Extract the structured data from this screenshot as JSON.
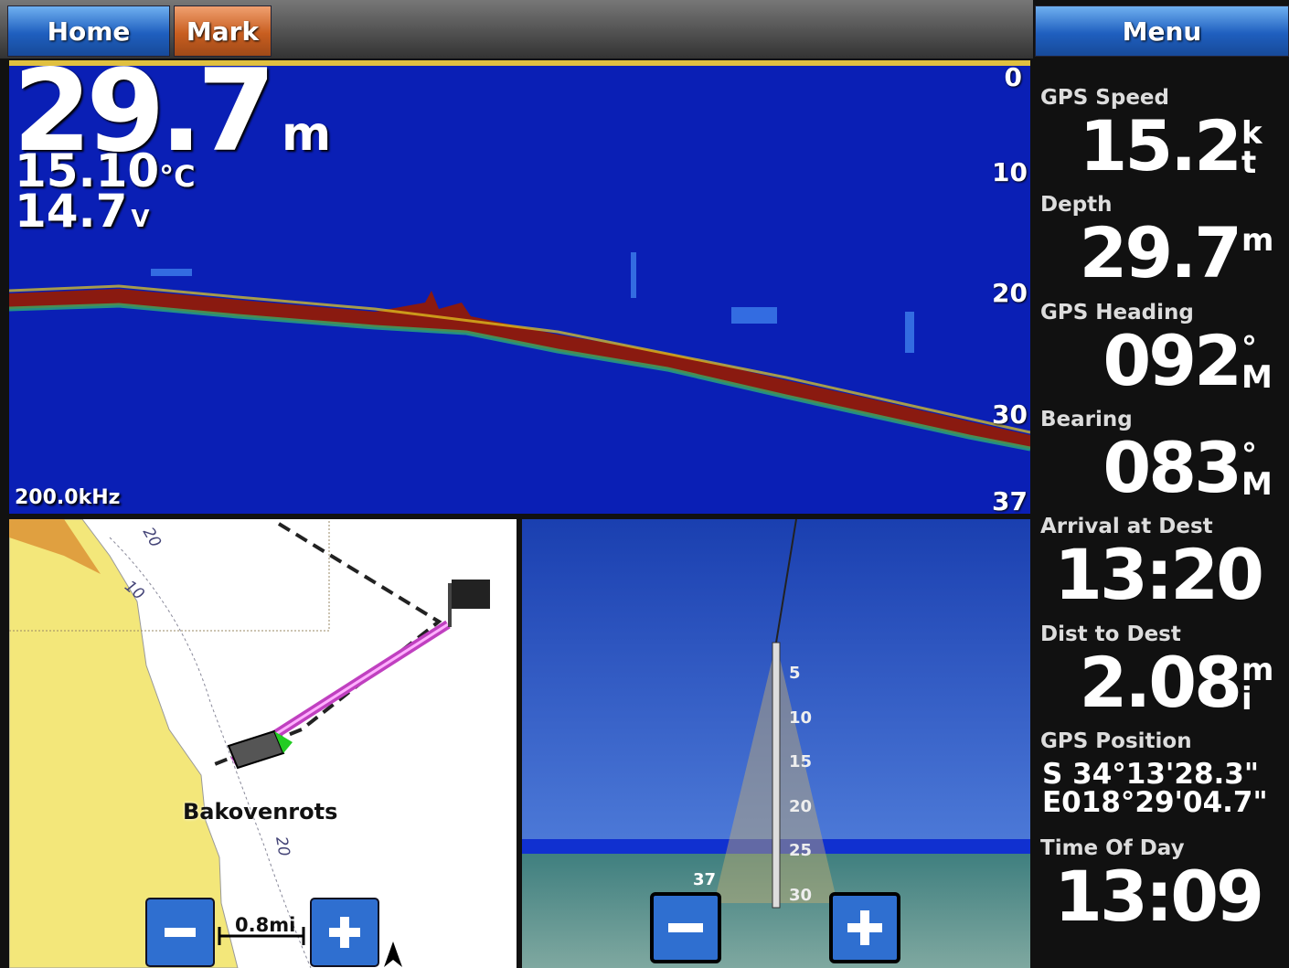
{
  "top_bar": {
    "home": "Home",
    "mark": "Mark",
    "menu": "Menu"
  },
  "sonar": {
    "depth": "29.7",
    "depth_unit": "m",
    "temperature": "15.10",
    "temperature_unit": "°C",
    "voltage": "14.7",
    "voltage_unit": "V",
    "frequency": "200.0kHz",
    "scale": [
      "0",
      "10",
      "20",
      "30",
      "37"
    ]
  },
  "map": {
    "place": "Bakovenrots",
    "scale": "0.8mi",
    "depth_labels": [
      "20",
      "10",
      "20"
    ],
    "north": "N"
  },
  "sonar_3d": {
    "depth_scale": [
      "5",
      "10",
      "15",
      "20",
      "25",
      "30"
    ],
    "depth": "37"
  },
  "sidebar": {
    "fields": [
      {
        "label": "GPS Speed",
        "value": "15.2",
        "unit": "kt"
      },
      {
        "label": "Depth",
        "value": "29.7",
        "unit": "m"
      },
      {
        "label": "GPS Heading",
        "value": "092",
        "unit": "°M"
      },
      {
        "label": "Bearing",
        "value": "083",
        "unit": "°M"
      },
      {
        "label": "Arrival at Dest",
        "value": "13:20"
      },
      {
        "label": "Dist to Dest",
        "value": "2.08",
        "unit": "mi"
      },
      {
        "label": "GPS Position",
        "lines": [
          "S  34°13'28.3\"",
          "E018°29'04.7\""
        ]
      },
      {
        "label": "Time Of Day",
        "value": "13:09"
      }
    ]
  }
}
